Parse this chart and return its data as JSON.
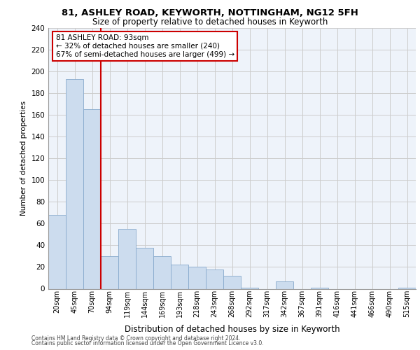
{
  "title1": "81, ASHLEY ROAD, KEYWORTH, NOTTINGHAM, NG12 5FH",
  "title2": "Size of property relative to detached houses in Keyworth",
  "xlabel": "Distribution of detached houses by size in Keyworth",
  "ylabel": "Number of detached properties",
  "categories": [
    "20sqm",
    "45sqm",
    "70sqm",
    "94sqm",
    "119sqm",
    "144sqm",
    "169sqm",
    "193sqm",
    "218sqm",
    "243sqm",
    "268sqm",
    "292sqm",
    "317sqm",
    "342sqm",
    "367sqm",
    "391sqm",
    "416sqm",
    "441sqm",
    "466sqm",
    "490sqm",
    "515sqm"
  ],
  "values": [
    68,
    193,
    165,
    30,
    55,
    38,
    30,
    22,
    20,
    18,
    12,
    1,
    0,
    7,
    0,
    1,
    0,
    0,
    0,
    0,
    1
  ],
  "bar_color": "#ccdcee",
  "bar_edge_color": "#88aacc",
  "vline_x_index": 3,
  "annotation_title": "81 ASHLEY ROAD: 93sqm",
  "annotation_line1": "← 32% of detached houses are smaller (240)",
  "annotation_line2": "67% of semi-detached houses are larger (499) →",
  "annotation_box_color": "#ffffff",
  "annotation_border_color": "#cc0000",
  "vline_color": "#cc0000",
  "footer1": "Contains HM Land Registry data © Crown copyright and database right 2024.",
  "footer2": "Contains public sector information licensed under the Open Government Licence v3.0.",
  "ylim": [
    0,
    240
  ],
  "yticks": [
    0,
    20,
    40,
    60,
    80,
    100,
    120,
    140,
    160,
    180,
    200,
    220,
    240
  ],
  "grid_color": "#cccccc",
  "bg_color": "#eef3fa"
}
